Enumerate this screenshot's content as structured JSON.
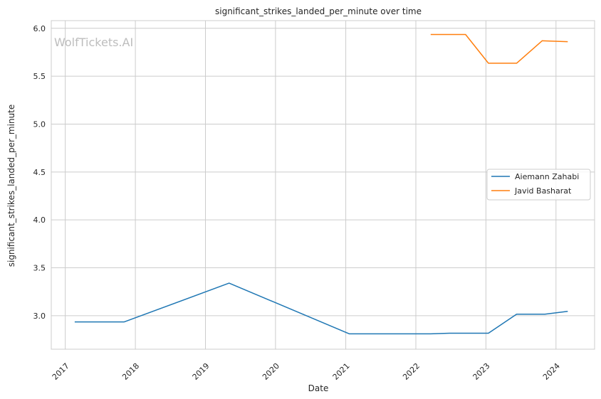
{
  "chart_data": {
    "type": "line",
    "title": "significant_strikes_landed_per_minute over time",
    "xlabel": "Date",
    "ylabel": "significant_strikes_landed_per_minute",
    "watermark": "WolfTickets.AI",
    "xlim": [
      "2016-10-20",
      "2024-07-20"
    ],
    "ylim": [
      2.65,
      6.08
    ],
    "x_ticks": [
      "2017-01-01",
      "2018-01-01",
      "2019-01-01",
      "2020-01-01",
      "2021-01-01",
      "2022-01-01",
      "2023-01-01",
      "2024-01-01"
    ],
    "x_tick_labels": [
      "2017",
      "2018",
      "2019",
      "2020",
      "2021",
      "2022",
      "2023",
      "2024"
    ],
    "y_ticks": [
      3.0,
      3.5,
      4.0,
      4.5,
      5.0,
      5.5,
      6.0
    ],
    "y_tick_labels": [
      "3.0",
      "3.5",
      "4.0",
      "4.5",
      "5.0",
      "5.5",
      "6.0"
    ],
    "grid": true,
    "legend_position": "center-right",
    "series": [
      {
        "name": "Aiemann Zahabi",
        "color": "#1f77b4",
        "points": [
          {
            "x": "2017-02-19",
            "y": 2.935
          },
          {
            "x": "2017-11-04",
            "y": 2.935
          },
          {
            "x": "2019-05-04",
            "y": 3.34
          },
          {
            "x": "2021-01-20",
            "y": 2.81
          },
          {
            "x": "2022-03-19",
            "y": 2.81
          },
          {
            "x": "2022-06-25",
            "y": 2.817
          },
          {
            "x": "2023-01-14",
            "y": 2.817
          },
          {
            "x": "2023-06-10",
            "y": 3.015
          },
          {
            "x": "2023-11-04",
            "y": 3.015
          },
          {
            "x": "2024-03-02",
            "y": 3.045
          }
        ]
      },
      {
        "name": "Javid Basharat",
        "color": "#ff7f0e",
        "points": [
          {
            "x": "2022-03-19",
            "y": 5.935
          },
          {
            "x": "2022-09-17",
            "y": 5.935
          },
          {
            "x": "2023-01-14",
            "y": 5.635
          },
          {
            "x": "2023-06-10",
            "y": 5.635
          },
          {
            "x": "2023-10-21",
            "y": 5.87
          },
          {
            "x": "2024-03-02",
            "y": 5.86
          }
        ]
      }
    ]
  }
}
